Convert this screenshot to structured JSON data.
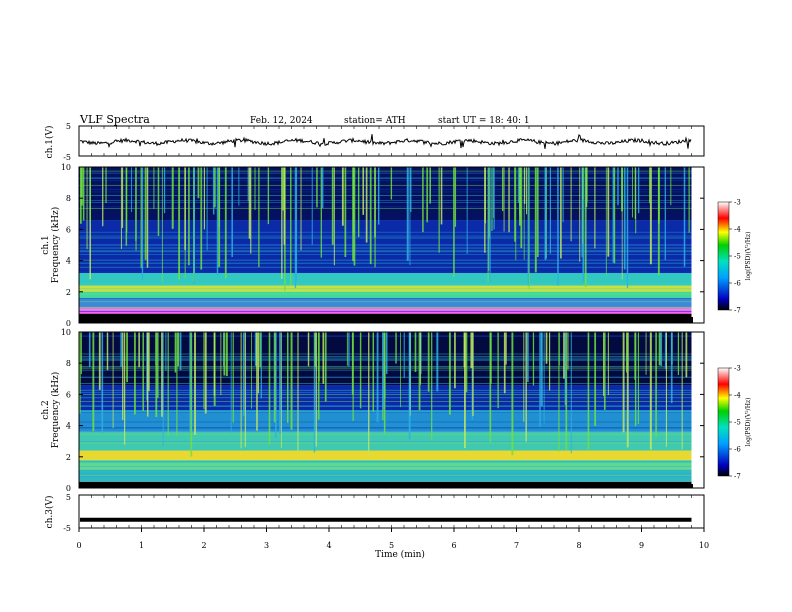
{
  "header": {
    "title": "VLF Spectra",
    "date": "Feb. 12, 2024",
    "station": "station= ATH",
    "start": "start  UT  =   18: 40: 1"
  },
  "chart_data": [
    {
      "type": "line",
      "name": "ch1-waveform",
      "ylabel": "ch.1(V)",
      "ylim": [
        -5,
        5
      ],
      "y_ticks": [
        "5",
        "-5"
      ],
      "xlim": [
        0,
        10
      ],
      "x_end": 9.8,
      "baseline_y": -0.3
    },
    {
      "type": "heatmap",
      "name": "ch1-spectrogram",
      "ylabel_top": "ch.1",
      "ylabel": "Frequency (kHz)",
      "ylim": [
        0,
        10
      ],
      "y_ticks": [
        "0",
        "2",
        "4",
        "6",
        "8",
        "10"
      ],
      "xlim": [
        0,
        10
      ],
      "x_end": 9.8,
      "colorbar": {
        "label": "log(PSD)(V²/Hz)",
        "range": [
          -7,
          -3
        ],
        "ticks": [
          "-3",
          "-4",
          "-5",
          "-6",
          "-7"
        ]
      },
      "bands": [
        {
          "from_khz": 0,
          "to_khz": 0.6,
          "color": "#000000"
        },
        {
          "from_khz": 0.6,
          "to_khz": 1.0,
          "color": "#ff60ff"
        },
        {
          "from_khz": 1.0,
          "to_khz": 1.6,
          "color": "#3a8ad8"
        },
        {
          "from_khz": 1.6,
          "to_khz": 2.0,
          "color": "#40d8a0"
        },
        {
          "from_khz": 2.0,
          "to_khz": 2.4,
          "color": "#c8e040"
        },
        {
          "from_khz": 2.4,
          "to_khz": 3.2,
          "color": "#30c8c0"
        },
        {
          "from_khz": 3.2,
          "to_khz": 6.6,
          "color": "#0a2aa8"
        },
        {
          "from_khz": 6.6,
          "to_khz": 10,
          "color": "#041060"
        }
      ]
    },
    {
      "type": "heatmap",
      "name": "ch2-spectrogram",
      "ylabel_top": "ch.2",
      "ylabel": "Frequency (kHz)",
      "ylim": [
        0,
        10
      ],
      "y_ticks": [
        "0",
        "2",
        "4",
        "6",
        "8",
        "10"
      ],
      "xlim": [
        0,
        10
      ],
      "x_end": 9.8,
      "colorbar": {
        "label": "log(PSD)(V²/Hz)",
        "range": [
          -7,
          -3
        ],
        "ticks": [
          "-3",
          "-4",
          "-5",
          "-6",
          "-7"
        ]
      },
      "bands": [
        {
          "from_khz": 0,
          "to_khz": 0.4,
          "color": "#000000"
        },
        {
          "from_khz": 0.4,
          "to_khz": 1.2,
          "color": "#30b8c0"
        },
        {
          "from_khz": 1.2,
          "to_khz": 1.8,
          "color": "#60d890"
        },
        {
          "from_khz": 1.8,
          "to_khz": 2.4,
          "color": "#e8d830"
        },
        {
          "from_khz": 2.4,
          "to_khz": 3.6,
          "color": "#40c8b0"
        },
        {
          "from_khz": 3.6,
          "to_khz": 5.0,
          "color": "#2090d0"
        },
        {
          "from_khz": 5.0,
          "to_khz": 6.6,
          "color": "#0a2aa8"
        },
        {
          "from_khz": 6.6,
          "to_khz": 10,
          "color": "#020a40"
        }
      ]
    },
    {
      "type": "line",
      "name": "ch3-waveform",
      "ylabel": "ch.3(V)",
      "ylim": [
        -5,
        5
      ],
      "y_ticks": [
        "5",
        "-5"
      ],
      "xlim": [
        0,
        10
      ],
      "x_end": 9.8,
      "baseline_y": -2.5,
      "xlabel": "Time  (min)",
      "x_ticks": [
        "0",
        "1",
        "2",
        "3",
        "4",
        "5",
        "6",
        "7",
        "8",
        "9",
        "10"
      ]
    }
  ]
}
